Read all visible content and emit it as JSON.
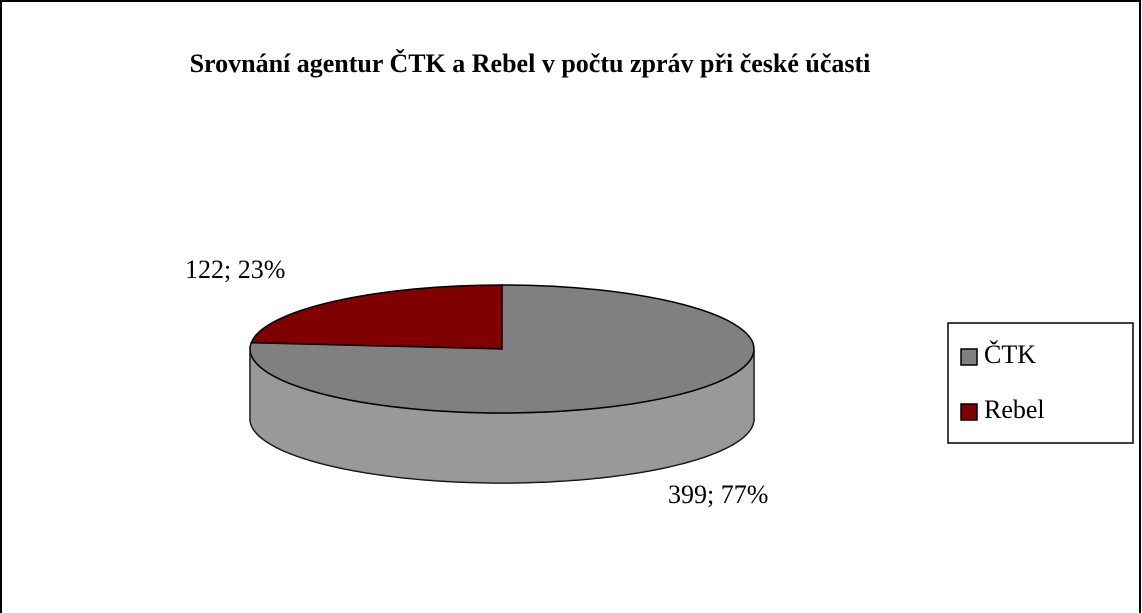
{
  "chart_data": {
    "type": "pie",
    "title": "Srovnání agentur ČTK a Rebel v počtu zpráv při české účasti",
    "categories": [
      "ČTK",
      "Rebel"
    ],
    "values": [
      399,
      122
    ],
    "value_labels": [
      "399; 77%",
      "122; 23%"
    ],
    "colors": [
      "#808080",
      "#800000"
    ],
    "legend": "right"
  }
}
